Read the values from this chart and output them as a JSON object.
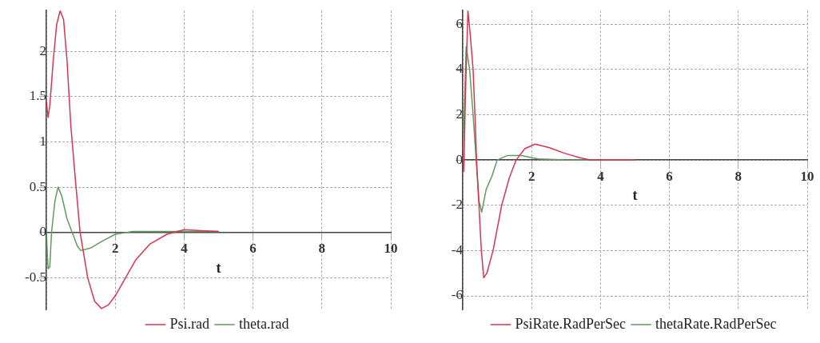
{
  "chart_data": [
    {
      "type": "line",
      "xlabel": "t",
      "xlim": [
        0,
        10
      ],
      "ylim": [
        -0.85,
        2.45
      ],
      "xticks": [
        {
          "value": 0,
          "label": null
        },
        2,
        4,
        6,
        8,
        10
      ],
      "yticks": [
        -0.5,
        0,
        0.5,
        1,
        1.5,
        2
      ],
      "grid": true,
      "legend": "bottom",
      "marker": "none",
      "line_style": "solid",
      "series": [
        {
          "name": "Psi.rad",
          "color": "#d9344f",
          "x": [
            0,
            0.05,
            0.1,
            0.2,
            0.3,
            0.4,
            0.5,
            0.6,
            0.71,
            0.85,
            0.98,
            1.2,
            1.4,
            1.6,
            1.8,
            2,
            2.3,
            2.6,
            3,
            3.5,
            4,
            4.5,
            5
          ],
          "values": [
            1.45,
            1.27,
            1.4,
            1.9,
            2.3,
            2.45,
            2.35,
            1.9,
            1.18,
            0.55,
            0,
            -0.5,
            -0.76,
            -0.84,
            -0.8,
            -0.7,
            -0.5,
            -0.3,
            -0.13,
            -0.02,
            0.03,
            0.02,
            0.01
          ]
        },
        {
          "name": "theta.rad",
          "color": "#5f9a5f",
          "x": [
            0,
            0.05,
            0.1,
            0.15,
            0.25,
            0.34,
            0.45,
            0.6,
            0.75,
            0.9,
            1,
            1.3,
            1.6,
            2,
            2.5,
            3,
            4,
            5
          ],
          "values": [
            0,
            -0.4,
            -0.38,
            0,
            0.35,
            0.5,
            0.4,
            0.15,
            0,
            -0.15,
            -0.2,
            -0.17,
            -0.1,
            -0.02,
            0.01,
            0.01,
            0.01,
            0.01
          ]
        }
      ]
    },
    {
      "type": "line",
      "xlabel": "t",
      "xlim": [
        0,
        10
      ],
      "ylim": [
        -6.6,
        6.6
      ],
      "xticks": [
        {
          "value": 0,
          "label": null
        },
        2,
        4,
        6,
        8,
        10
      ],
      "yticks": [
        -6,
        -4,
        -2,
        0,
        2,
        4,
        6
      ],
      "grid": true,
      "legend": "bottom",
      "marker": "none",
      "line_style": "solid",
      "series": [
        {
          "name": "PsiRate.RadPerSec",
          "color": "#d9344f",
          "x": [
            0,
            0.03,
            0.08,
            0.15,
            0.22,
            0.3,
            0.37,
            0.4,
            0.47,
            0.54,
            0.61,
            0.7,
            0.88,
            1.13,
            1.35,
            1.55,
            1.8,
            2.1,
            2.5,
            2.95,
            3.4,
            3.7,
            4,
            5
          ],
          "values": [
            0,
            -0.5,
            3,
            6.6,
            5.5,
            4,
            1.4,
            0,
            -2,
            -4,
            -5.2,
            -5,
            -4,
            -2,
            -0.8,
            0,
            0.5,
            0.7,
            0.55,
            0.3,
            0.1,
            0,
            0,
            0
          ]
        },
        {
          "name": "thetaRate.RadPerSec",
          "color": "#5f9a5f",
          "x": [
            0,
            0.05,
            0.1,
            0.2,
            0.3,
            0.39,
            0.47,
            0.55,
            0.68,
            0.85,
            1,
            1.3,
            1.71,
            2,
            2.2,
            3,
            5
          ],
          "values": [
            0,
            2.5,
            5,
            4,
            2,
            0,
            -1.8,
            -2.3,
            -1.3,
            -0.7,
            0,
            0.2,
            0.2,
            0.1,
            0.05,
            0,
            0
          ]
        }
      ]
    }
  ]
}
